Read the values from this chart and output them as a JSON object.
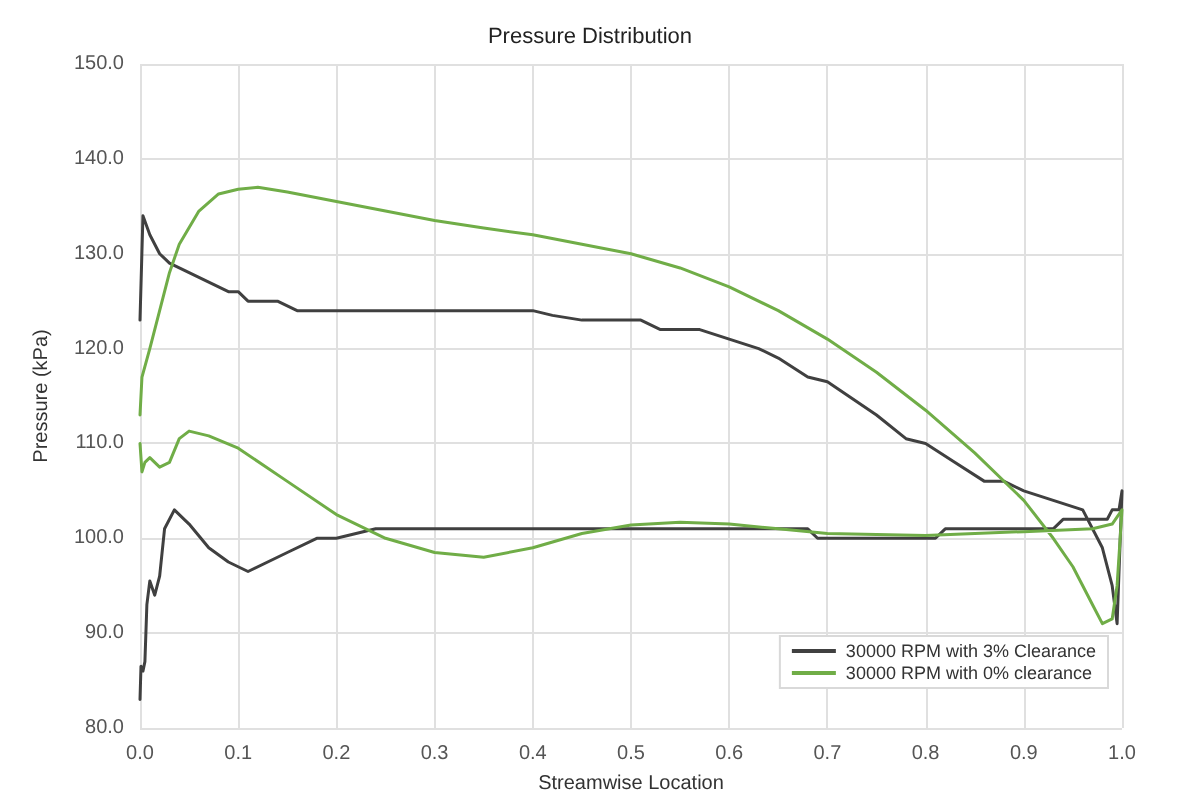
{
  "chart_data": {
    "type": "line",
    "title": "Pressure Distribution",
    "xlabel": "Streamwise Location",
    "ylabel": "Pressure (kPa)",
    "xlim": [
      0,
      1
    ],
    "xticks": [
      {
        "value": 0,
        "label": "0.0"
      },
      {
        "value": 0.1,
        "label": "0.1"
      },
      {
        "value": 0.2,
        "label": "0.2"
      },
      {
        "value": 0.3,
        "label": "0.3"
      },
      {
        "value": 0.4,
        "label": "0.4"
      },
      {
        "value": 0.5,
        "label": "0.5"
      },
      {
        "value": 0.6,
        "label": "0.6"
      },
      {
        "value": 0.7,
        "label": "0.7"
      },
      {
        "value": 0.8,
        "label": "0.8"
      },
      {
        "value": 0.9,
        "label": "0.9"
      },
      {
        "value": 1,
        "label": "1.0"
      }
    ],
    "ylim": [
      80,
      150
    ],
    "yticks": [
      {
        "value": 80,
        "label": "80.0"
      },
      {
        "value": 90,
        "label": "90.0"
      },
      {
        "value": 100,
        "label": "100.0"
      },
      {
        "value": 110,
        "label": "110.0"
      },
      {
        "value": 120,
        "label": "120.0"
      },
      {
        "value": 130,
        "label": "130.0"
      },
      {
        "value": 140,
        "label": "140.0"
      },
      {
        "value": 150,
        "label": "150.0"
      }
    ],
    "grid": true,
    "legend": "bottom right",
    "marker": "none",
    "line_style": "solid",
    "series": [
      {
        "name": "30000 RPM with 3% Clearance",
        "color": "#404040",
        "x": [
          0,
          0.003,
          0.01,
          0.02,
          0.03,
          0.04,
          0.05,
          0.06,
          0.07,
          0.08,
          0.09,
          0.1,
          0.11,
          0.14,
          0.16,
          0.4,
          0.42,
          0.45,
          0.51,
          0.53,
          0.57,
          0.6,
          0.63,
          0.65,
          0.68,
          0.7,
          0.75,
          0.78,
          0.8,
          0.83,
          0.86,
          0.88,
          0.9,
          0.93,
          0.96,
          0.98,
          0.99,
          0.995,
          1,
          0.997,
          0.99,
          0.985,
          0.94,
          0.93,
          0.82,
          0.81,
          0.69,
          0.68,
          0.24,
          0.2,
          0.18,
          0.15,
          0.11,
          0.09,
          0.07,
          0.05,
          0.035,
          0.025,
          0.02,
          0.015,
          0.01,
          0.007,
          0.005,
          0.003,
          0.001,
          0
        ],
        "values": [
          123,
          134,
          132,
          130,
          129,
          128.5,
          128,
          127.5,
          127,
          126.5,
          126,
          126,
          125,
          125,
          124,
          124,
          123.5,
          123,
          123,
          122,
          122,
          121,
          120,
          119,
          117,
          116.5,
          113,
          110.5,
          110,
          108,
          106,
          106,
          105,
          104,
          103,
          99,
          95,
          91,
          105,
          103,
          103,
          102,
          102,
          101,
          101,
          100,
          100,
          101,
          101,
          100,
          100,
          98.5,
          96.5,
          97.5,
          99,
          101.5,
          103,
          101,
          96,
          94,
          95.5,
          93,
          87,
          86,
          86.5,
          83
        ]
      },
      {
        "name": "30000 RPM with 0% clearance",
        "color": "#70ad47",
        "x": [
          0,
          0.002,
          0.01,
          0.02,
          0.03,
          0.04,
          0.06,
          0.08,
          0.1,
          0.12,
          0.15,
          0.2,
          0.25,
          0.3,
          0.35,
          0.4,
          0.45,
          0.5,
          0.55,
          0.6,
          0.65,
          0.7,
          0.75,
          0.8,
          0.85,
          0.9,
          0.93,
          0.95,
          0.97,
          0.98,
          0.99,
          0.995,
          1,
          0.99,
          0.97,
          0.9,
          0.8,
          0.7,
          0.65,
          0.6,
          0.55,
          0.5,
          0.45,
          0.4,
          0.35,
          0.3,
          0.25,
          0.2,
          0.15,
          0.1,
          0.07,
          0.05,
          0.04,
          0.03,
          0.02,
          0.01,
          0.005,
          0.002,
          0
        ],
        "values": [
          113,
          117,
          120,
          124,
          128,
          131,
          134.5,
          136.3,
          136.8,
          137,
          136.5,
          135.5,
          134.5,
          133.5,
          132.7,
          132,
          131,
          130,
          128.5,
          126.5,
          124,
          121,
          117.5,
          113.5,
          109,
          104,
          100,
          97,
          93,
          91,
          91.5,
          95,
          103,
          101.5,
          101,
          100.7,
          100.3,
          100.5,
          101,
          101.5,
          101.7,
          101.4,
          100.5,
          99,
          98,
          98.5,
          100,
          102.5,
          106,
          109.5,
          110.8,
          111.3,
          110.5,
          108,
          107.5,
          108.5,
          108,
          107,
          110
        ]
      }
    ]
  }
}
